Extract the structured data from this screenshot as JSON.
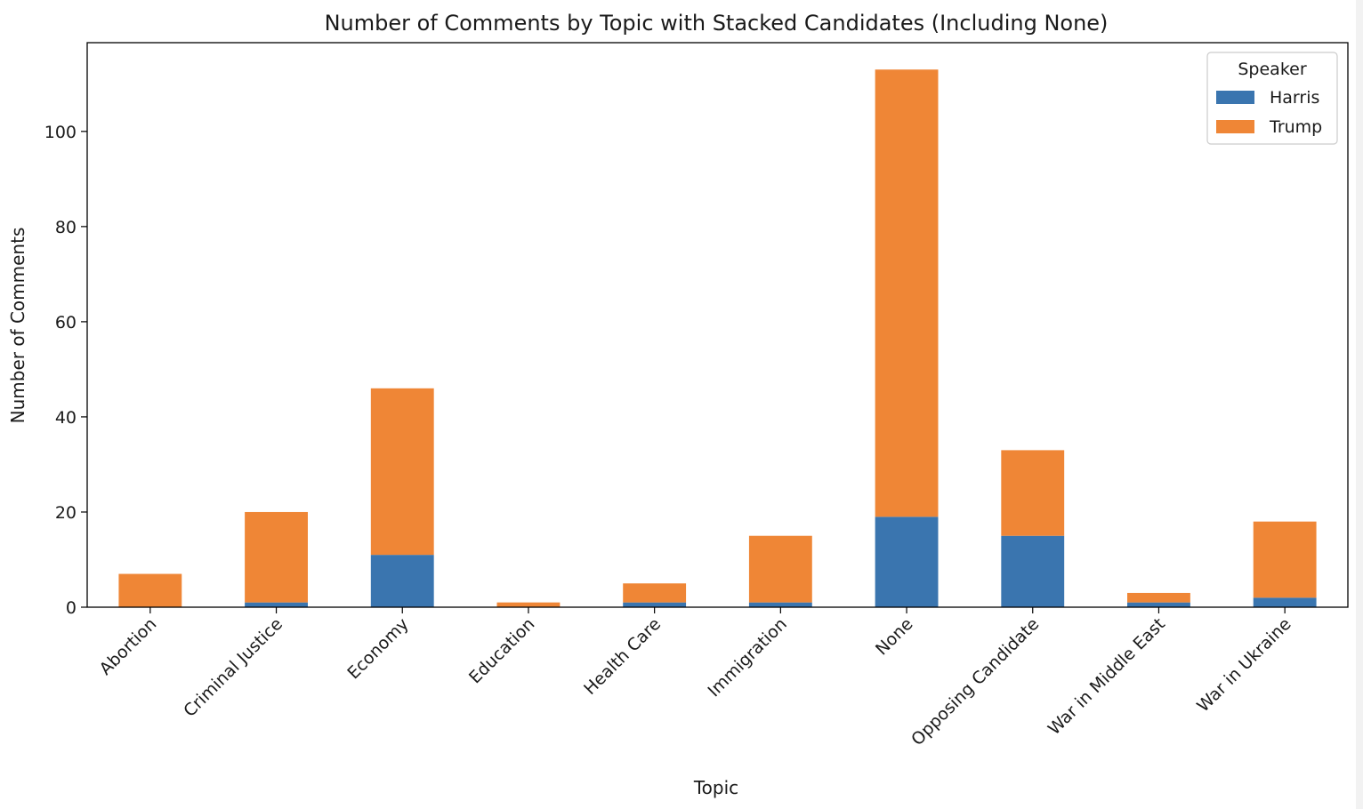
{
  "chart_data": {
    "type": "bar",
    "stacked": true,
    "title": "Number of Comments by Topic with Stacked Candidates (Including None)",
    "xlabel": "Topic",
    "ylabel": "Number of Comments",
    "categories": [
      "Abortion",
      "Criminal Justice",
      "Economy",
      "Education",
      "Health Care",
      "Immigration",
      "None",
      "Opposing Candidate",
      "War in Middle East",
      "War in Ukraine"
    ],
    "series": [
      {
        "name": "Harris",
        "color": "#3a75af",
        "values": [
          0,
          1,
          11,
          0,
          1,
          1,
          19,
          15,
          1,
          2
        ]
      },
      {
        "name": "Trump",
        "color": "#ef8636",
        "values": [
          7,
          19,
          35,
          1,
          4,
          14,
          94,
          18,
          2,
          16
        ]
      }
    ],
    "ylim": [
      0,
      118.65
    ],
    "yticks": [
      0,
      20,
      40,
      60,
      80,
      100
    ],
    "legend": {
      "title": "Speaker",
      "position": "top-right"
    },
    "grid": false
  }
}
